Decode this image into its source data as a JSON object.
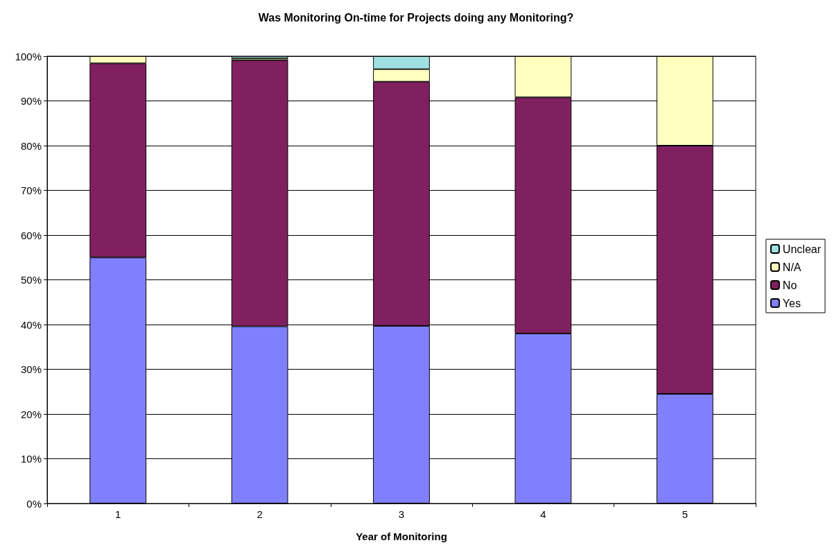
{
  "chart_data": {
    "type": "bar",
    "title": "Was Monitoring On-time for Projects doing any Monitoring?",
    "xlabel": "Year of Monitoring",
    "categories": [
      "1",
      "2",
      "3",
      "4",
      "5"
    ],
    "series": [
      {
        "name": "Yes",
        "color": "#8080ff",
        "values": [
          55,
          39.6,
          39.7,
          38,
          24.5
        ]
      },
      {
        "name": "No",
        "color": "#802060",
        "values": [
          43.4,
          59.5,
          54.6,
          52.8,
          55.5
        ]
      },
      {
        "name": "N/A",
        "color": "#ffffc0",
        "values": [
          1.6,
          0.4,
          2.8,
          9.2,
          20
        ]
      },
      {
        "name": "Unclear",
        "color": "#a0e0e0",
        "values": [
          null,
          0.5,
          2.9,
          null,
          null
        ]
      }
    ],
    "stacked": true,
    "ylim": [
      0,
      100
    ],
    "yticks": [
      {
        "value": 0,
        "label": "0%"
      },
      {
        "value": 10,
        "label": "10%"
      },
      {
        "value": 20,
        "label": "20%"
      },
      {
        "value": 30,
        "label": "30%"
      },
      {
        "value": 40,
        "label": "40%"
      },
      {
        "value": 50,
        "label": "50%"
      },
      {
        "value": 60,
        "label": "60%"
      },
      {
        "value": 70,
        "label": "70%"
      },
      {
        "value": 80,
        "label": "80%"
      },
      {
        "value": 90,
        "label": "90%"
      },
      {
        "value": 100,
        "label": "100%"
      }
    ],
    "grid": "y",
    "legend": "right"
  }
}
